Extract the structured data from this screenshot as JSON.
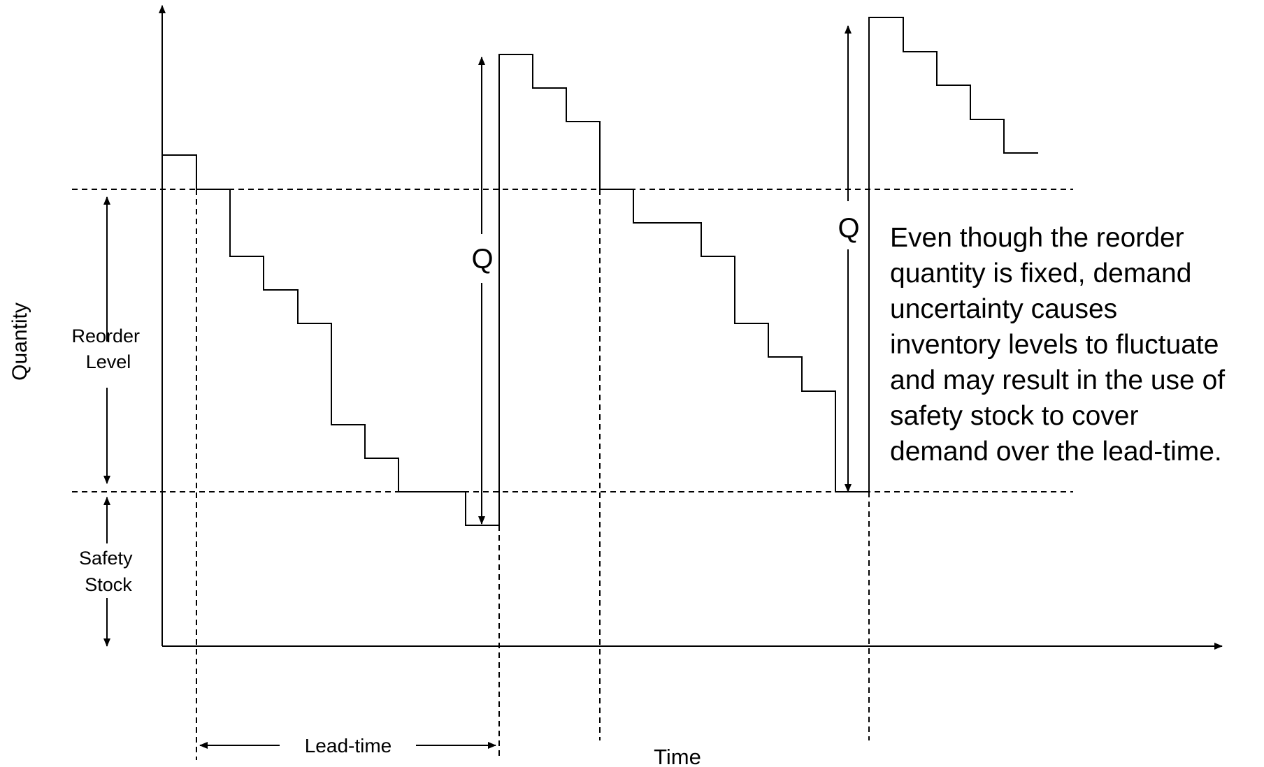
{
  "axes": {
    "y_label": "Quantity",
    "x_label": "Time"
  },
  "levels": {
    "reorder_label_line1": "Reorder",
    "reorder_label_line2": "Level",
    "safety_label_line1": "Safety",
    "safety_label_line2": "Stock"
  },
  "order_quantity_label": "Q",
  "lead_time_label": "Lead-time",
  "annotation_lines": [
    "Even though the reorder",
    "quantity is fixed, demand",
    "uncertainty causes",
    "inventory levels to fluctuate",
    "and may result in the use of",
    "safety stock to cover",
    "demand over the lead-time."
  ]
}
